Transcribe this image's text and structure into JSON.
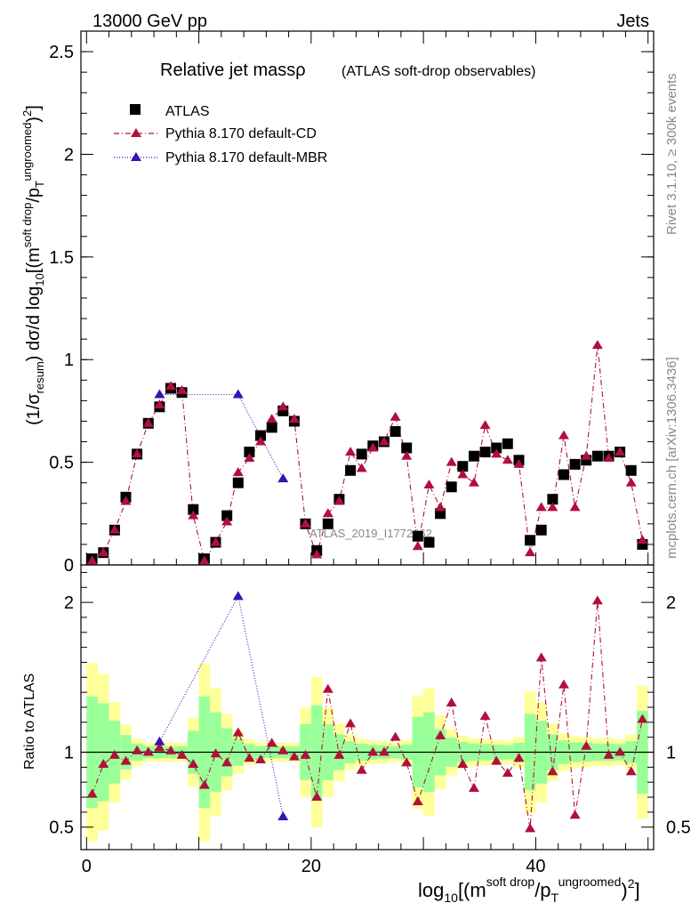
{
  "header": {
    "beam": "13000 GeV pp",
    "category": "Jets"
  },
  "side": {
    "rivet": "Rivet 3.1.10, ≥ 300k events",
    "mcplots": "mcplots.cern.ch [arXiv:1306.3436]"
  },
  "watermark": "ATLAS_2019_I1772062",
  "colors": {
    "data": "#000000",
    "cd": "#b0103a",
    "mbr": "#3a12b0",
    "band_outer": "#ffff99",
    "band_inner": "#99ff99"
  },
  "chart_data": [
    {
      "type": "scatter",
      "title": "Relative jet massρ",
      "subtitle": "(ATLAS soft-drop observables)",
      "xlabel": "log10[(m soft drop/pT ungroomed)2]",
      "ylabel": "(1/σresum) dσ/d log10[(m soft drop/pT ungroomed)2]",
      "xlim": [
        -0.5,
        50.5
      ],
      "ylim": [
        0,
        2.6
      ],
      "yticks": [
        "0",
        "0.5",
        "1",
        "1.5",
        "2",
        "2.5"
      ],
      "legend": [
        "ATLAS",
        "Pythia 8.170 default-CD",
        "Pythia 8.170 default-MBR"
      ],
      "legend_position": "top-left",
      "series": [
        {
          "name": "ATLAS",
          "x": [
            0.5,
            1.5,
            2.5,
            3.5,
            4.5,
            5.5,
            6.5,
            7.5,
            8.5,
            9.5,
            10.5,
            11.5,
            12.5,
            13.5,
            14.5,
            15.5,
            16.5,
            17.5,
            18.5,
            19.5,
            20.5,
            21.5,
            22.5,
            23.5,
            24.5,
            25.5,
            26.5,
            27.5,
            28.5,
            29.5,
            30.5,
            31.5,
            32.5,
            33.5,
            34.5,
            35.5,
            36.5,
            37.5,
            38.5,
            39.5,
            40.5,
            41.5,
            42.5,
            43.5,
            44.5,
            45.5,
            46.5,
            47.5,
            48.5,
            49.5
          ],
          "values": [
            0.03,
            0.06,
            0.17,
            0.33,
            0.54,
            0.69,
            0.77,
            0.86,
            0.84,
            0.27,
            0.03,
            0.11,
            0.24,
            0.4,
            0.55,
            0.63,
            0.67,
            0.75,
            0.7,
            0.2,
            0.07,
            0.2,
            0.32,
            0.46,
            0.54,
            0.58,
            0.6,
            0.65,
            0.57,
            0.14,
            0.11,
            0.25,
            0.38,
            0.48,
            0.53,
            0.55,
            0.57,
            0.59,
            0.51,
            0.12,
            0.17,
            0.32,
            0.44,
            0.49,
            0.51,
            0.53,
            0.53,
            0.55,
            0.46,
            0.1
          ]
        },
        {
          "name": "Pythia 8.170 default-CD",
          "x": [
            0.5,
            1.5,
            2.5,
            3.5,
            4.5,
            5.5,
            6.5,
            7.5,
            8.5,
            9.5,
            10.5,
            11.5,
            12.5,
            13.5,
            14.5,
            15.5,
            16.5,
            17.5,
            18.5,
            19.5,
            20.5,
            21.5,
            22.5,
            23.5,
            24.5,
            25.5,
            26.5,
            27.5,
            28.5,
            29.5,
            30.5,
            31.5,
            32.5,
            33.5,
            34.5,
            35.5,
            36.5,
            37.5,
            38.5,
            39.5,
            40.5,
            41.5,
            42.5,
            43.5,
            44.5,
            45.5,
            46.5,
            47.5,
            48.5,
            49.5
          ],
          "values": [
            0.02,
            0.06,
            0.17,
            0.31,
            0.54,
            0.69,
            0.78,
            0.87,
            0.85,
            0.24,
            0.02,
            0.11,
            0.21,
            0.45,
            0.52,
            0.6,
            0.71,
            0.77,
            0.71,
            0.2,
            0.05,
            0.25,
            0.31,
            0.55,
            0.47,
            0.57,
            0.6,
            0.72,
            0.53,
            0.09,
            0.39,
            0.28,
            0.5,
            0.44,
            0.4,
            0.68,
            0.54,
            0.51,
            0.49,
            0.06,
            0.28,
            0.28,
            0.63,
            0.28,
            0.53,
            1.07,
            0.52,
            0.55,
            0.4,
            0.12
          ]
        },
        {
          "name": "Pythia 8.170 default-MBR",
          "x": [
            6.5,
            13.5,
            17.5
          ],
          "values": [
            0.83,
            0.83,
            0.42
          ]
        }
      ]
    },
    {
      "type": "scatter",
      "title": "Ratio to ATLAS",
      "xlabel": "log10[(m soft drop/pT ungroomed)2]",
      "ylabel": "Ratio to ATLAS",
      "xlim": [
        -0.5,
        50.5
      ],
      "ylim": [
        0.35,
        2.25
      ],
      "xticks": [
        "0",
        "20",
        "40"
      ],
      "yticks": [
        "0.5",
        "1",
        "2"
      ],
      "series": [
        {
          "name": "Pythia 8.170 default-CD",
          "x": [
            0.5,
            1.5,
            2.5,
            3.5,
            4.5,
            5.5,
            6.5,
            7.5,
            8.5,
            9.5,
            10.5,
            11.5,
            12.5,
            13.5,
            14.5,
            15.5,
            16.5,
            17.5,
            18.5,
            19.5,
            20.5,
            21.5,
            22.5,
            23.5,
            24.5,
            25.5,
            26.5,
            27.5,
            28.5,
            29.5,
            31.5,
            32.5,
            33.5,
            34.5,
            35.5,
            36.5,
            37.5,
            38.5,
            39.5,
            40.5,
            41.5,
            42.5,
            43.5,
            44.5,
            45.5,
            46.5,
            47.5,
            48.5,
            49.5
          ],
          "values": [
            0.72,
            0.92,
            0.98,
            0.94,
            1.01,
            1.0,
            1.03,
            1.01,
            0.98,
            0.92,
            0.78,
            0.99,
            0.93,
            1.13,
            0.96,
            0.95,
            1.06,
            1.01,
            0.97,
            0.98,
            0.7,
            1.42,
            0.98,
            1.19,
            0.88,
            1.0,
            1.0,
            1.1,
            0.93,
            0.67,
            1.11,
            1.33,
            0.92,
            0.76,
            1.24,
            0.94,
            0.86,
            0.96,
            0.49,
            1.63,
            0.87,
            1.45,
            0.58,
            1.04,
            2.01,
            0.98,
            1.0,
            0.87,
            1.22
          ]
        },
        {
          "name": "Pythia 8.170 default-MBR",
          "x": [
            6.5,
            13.5,
            17.5
          ],
          "values": [
            1.07,
            2.04,
            0.57
          ]
        }
      ]
    }
  ]
}
